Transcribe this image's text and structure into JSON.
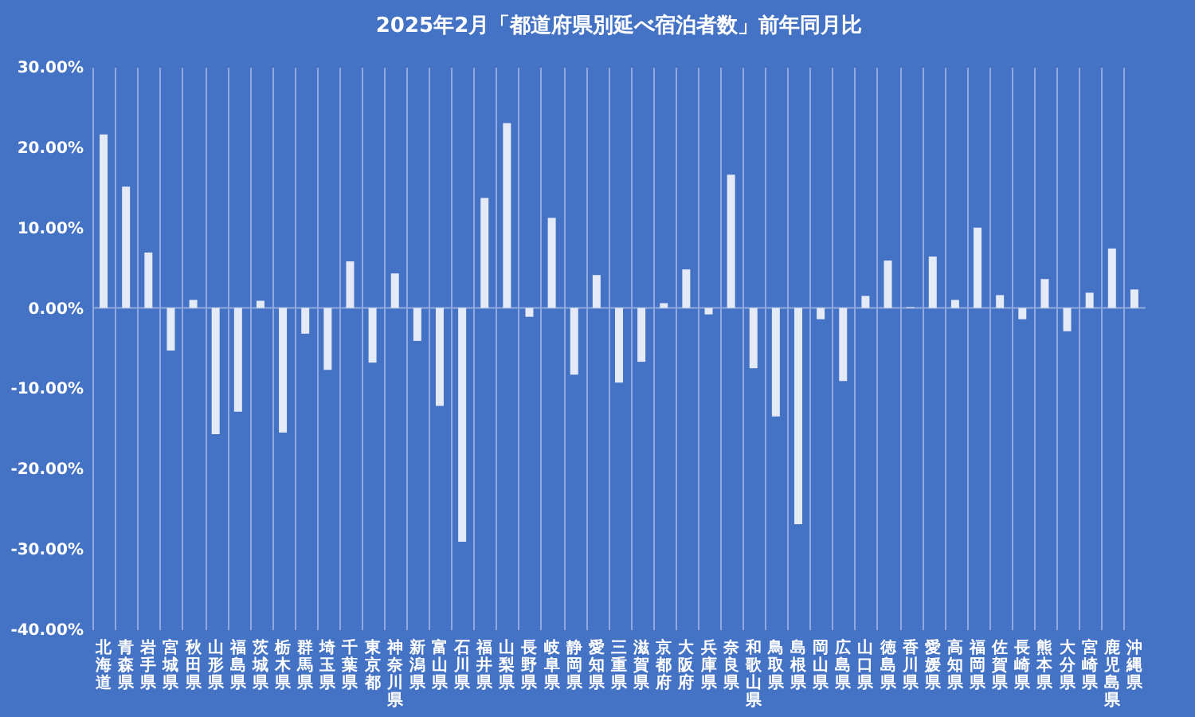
{
  "chart_data": {
    "type": "bar",
    "title": "2025年2月「都道府県別延べ宿泊者数」前年同月比",
    "categories": [
      "北海道",
      "青森県",
      "岩手県",
      "宮城県",
      "秋田県",
      "山形県",
      "福島県",
      "茨城県",
      "栃木県",
      "群馬県",
      "埼玉県",
      "千葉県",
      "東京都",
      "神奈川県",
      "新潟県",
      "富山県",
      "石川県",
      "福井県",
      "山梨県",
      "長野県",
      "岐阜県",
      "静岡県",
      "愛知県",
      "三重県",
      "滋賀県",
      "京都府",
      "大阪府",
      "兵庫県",
      "奈良県",
      "和歌山県",
      "鳥取県",
      "島根県",
      "岡山県",
      "広島県",
      "山口県",
      "徳島県",
      "香川県",
      "愛媛県",
      "高知県",
      "福岡県",
      "佐賀県",
      "長崎県",
      "熊本県",
      "大分県",
      "宮崎県",
      "鹿児島県",
      "沖縄県"
    ],
    "values": [
      21.6,
      15.1,
      6.9,
      -5.3,
      1.0,
      -15.7,
      -12.9,
      0.9,
      -15.5,
      -3.2,
      -7.7,
      5.8,
      -6.8,
      4.3,
      -4.1,
      -12.2,
      -29.1,
      13.7,
      23.0,
      -1.1,
      11.2,
      -8.3,
      4.1,
      -9.3,
      -6.7,
      0.6,
      4.8,
      -0.8,
      16.6,
      -7.5,
      -13.5,
      -26.9,
      -1.4,
      -9.1,
      1.5,
      5.9,
      0.1,
      6.4,
      1.0,
      10.0,
      1.6,
      -1.4,
      3.6,
      -2.9,
      1.9,
      7.4,
      2.3
    ],
    "color": "#e4eaf6",
    "ylim": [
      -40,
      30
    ],
    "yticks": [
      {
        "value": 30,
        "label": "30.00%"
      },
      {
        "value": 20,
        "label": "20.00%"
      },
      {
        "value": 10,
        "label": "10.00%"
      },
      {
        "value": 0,
        "label": "0.00%"
      },
      {
        "value": -10,
        "label": "-10.00%"
      },
      {
        "value": -20,
        "label": "-20.00%"
      },
      {
        "value": -30,
        "label": "-30.00%"
      },
      {
        "value": -40,
        "label": "-40.00%"
      }
    ],
    "grid": "x",
    "ref_lines": [
      {
        "axis": "y",
        "value": 0,
        "color": "#8fa9dc"
      }
    ]
  }
}
